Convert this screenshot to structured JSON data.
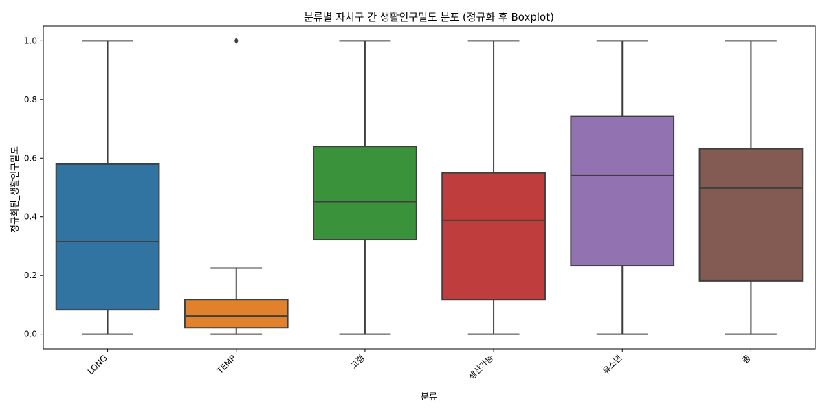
{
  "chart_data": {
    "type": "boxplot",
    "title": "분류별 자치구 간 생활인구밀도 분포 (정규화 후 Boxplot)",
    "xlabel": "분류",
    "ylabel": "정규화된_생활인구밀도",
    "ylim": [
      -0.05,
      1.05
    ],
    "yticks": [
      0.0,
      0.2,
      0.4,
      0.6,
      0.8,
      1.0
    ],
    "ytick_labels": [
      "0.0",
      "0.2",
      "0.4",
      "0.6",
      "0.8",
      "1.0"
    ],
    "grid": false,
    "categories": [
      "LONG",
      "TEMP",
      "고령",
      "생산가능",
      "유소년",
      "총"
    ],
    "boxes": [
      {
        "category": "LONG",
        "whisker_low": 0.0,
        "q1": 0.083,
        "median": 0.315,
        "q3": 0.58,
        "whisker_high": 1.0,
        "outliers": [],
        "color": "#3274a1"
      },
      {
        "category": "TEMP",
        "whisker_low": 0.0,
        "q1": 0.022,
        "median": 0.062,
        "q3": 0.118,
        "whisker_high": 0.225,
        "outliers": [
          1.0
        ],
        "color": "#e1812c"
      },
      {
        "category": "고령",
        "whisker_low": 0.0,
        "q1": 0.322,
        "median": 0.452,
        "q3": 0.64,
        "whisker_high": 1.0,
        "outliers": [],
        "color": "#3a923a"
      },
      {
        "category": "생산가능",
        "whisker_low": 0.0,
        "q1": 0.118,
        "median": 0.388,
        "q3": 0.55,
        "whisker_high": 1.0,
        "outliers": [],
        "color": "#c03d3e"
      },
      {
        "category": "유소년",
        "whisker_low": 0.0,
        "q1": 0.233,
        "median": 0.54,
        "q3": 0.742,
        "whisker_high": 1.0,
        "outliers": [],
        "color": "#9372b2"
      },
      {
        "category": "총",
        "whisker_low": 0.0,
        "q1": 0.182,
        "median": 0.498,
        "q3": 0.632,
        "whisker_high": 1.0,
        "outliers": [],
        "color": "#845b53"
      }
    ]
  }
}
